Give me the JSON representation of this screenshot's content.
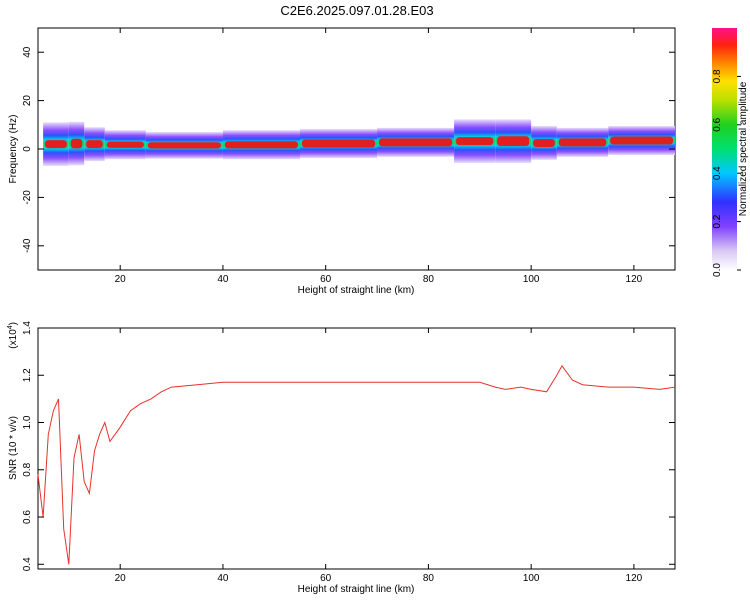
{
  "title": "C2E6.2025.097.01.28.E03",
  "chart_data": [
    {
      "type": "heatmap",
      "xlabel": "Height of straight line (km)",
      "ylabel": "Frequency (Hz)",
      "xlim": [
        4,
        128
      ],
      "ylim": [
        -50,
        50
      ],
      "xticks": [
        20,
        40,
        60,
        80,
        100,
        120
      ],
      "yticks": [
        -40,
        -20,
        0,
        20,
        40
      ],
      "colorbar": {
        "label": "Normalized spectral amplitude",
        "range": [
          0.0,
          1.0
        ],
        "ticks": [
          "0.0",
          "0.2",
          "0.4",
          "0.6",
          "0.8"
        ]
      },
      "peak_band": [
        {
          "x": 5,
          "f": 1.5,
          "bw": 3
        },
        {
          "x": 10,
          "f": 2.5,
          "bw": 6
        },
        {
          "x": 13,
          "f": 2.0,
          "bw": 4
        },
        {
          "x": 17,
          "f": 2.0,
          "bw": 3
        },
        {
          "x": 25,
          "f": 1.5,
          "bw": 2
        },
        {
          "x": 40,
          "f": 1.5,
          "bw": 2.5
        },
        {
          "x": 55,
          "f": 2.0,
          "bw": 3
        },
        {
          "x": 70,
          "f": 2.5,
          "bw": 3
        },
        {
          "x": 85,
          "f": 3.0,
          "bw": 3
        },
        {
          "x": 93,
          "f": 3.5,
          "bw": 6
        },
        {
          "x": 100,
          "f": 3.0,
          "bw": 4
        },
        {
          "x": 105,
          "f": 2.0,
          "bw": 3
        },
        {
          "x": 115,
          "f": 3.5,
          "bw": 3
        },
        {
          "x": 128,
          "f": 3.5,
          "bw": 3
        }
      ]
    },
    {
      "type": "line",
      "xlabel": "Height of straight line (km)",
      "ylabel": "SNR (10 * v/v)",
      "y_multiplier": "(x10",
      "y_multiplier_exp": "4",
      "y_multiplier_close": ")",
      "xlim": [
        4,
        128
      ],
      "ylim": [
        0.38,
        1.4
      ],
      "xticks": [
        20,
        40,
        60,
        80,
        100,
        120
      ],
      "yticks": [
        "0.4",
        "0.6",
        "0.8",
        "1.0",
        "1.2",
        "1.4"
      ],
      "ytick_values": [
        0.4,
        0.6,
        0.8,
        1.0,
        1.2,
        1.4
      ],
      "color": "#e8312b",
      "series": [
        {
          "x": [
            4,
            5,
            6,
            7,
            8,
            9,
            10,
            11,
            12,
            13,
            14,
            15,
            16,
            17,
            18,
            19,
            20,
            22,
            24,
            26,
            28,
            30,
            35,
            40,
            45,
            50,
            55,
            60,
            65,
            70,
            75,
            80,
            85,
            90,
            93,
            95,
            98,
            100,
            103,
            105,
            106,
            108,
            110,
            115,
            120,
            125,
            128
          ],
          "y": [
            0.78,
            0.6,
            0.95,
            1.05,
            1.1,
            0.55,
            0.4,
            0.85,
            0.95,
            0.75,
            0.7,
            0.88,
            0.95,
            1.0,
            0.92,
            0.95,
            0.98,
            1.05,
            1.08,
            1.1,
            1.13,
            1.15,
            1.16,
            1.17,
            1.17,
            1.17,
            1.17,
            1.17,
            1.17,
            1.17,
            1.17,
            1.17,
            1.17,
            1.17,
            1.15,
            1.14,
            1.15,
            1.14,
            1.13,
            1.2,
            1.24,
            1.18,
            1.16,
            1.15,
            1.15,
            1.14,
            1.15
          ]
        }
      ]
    }
  ]
}
